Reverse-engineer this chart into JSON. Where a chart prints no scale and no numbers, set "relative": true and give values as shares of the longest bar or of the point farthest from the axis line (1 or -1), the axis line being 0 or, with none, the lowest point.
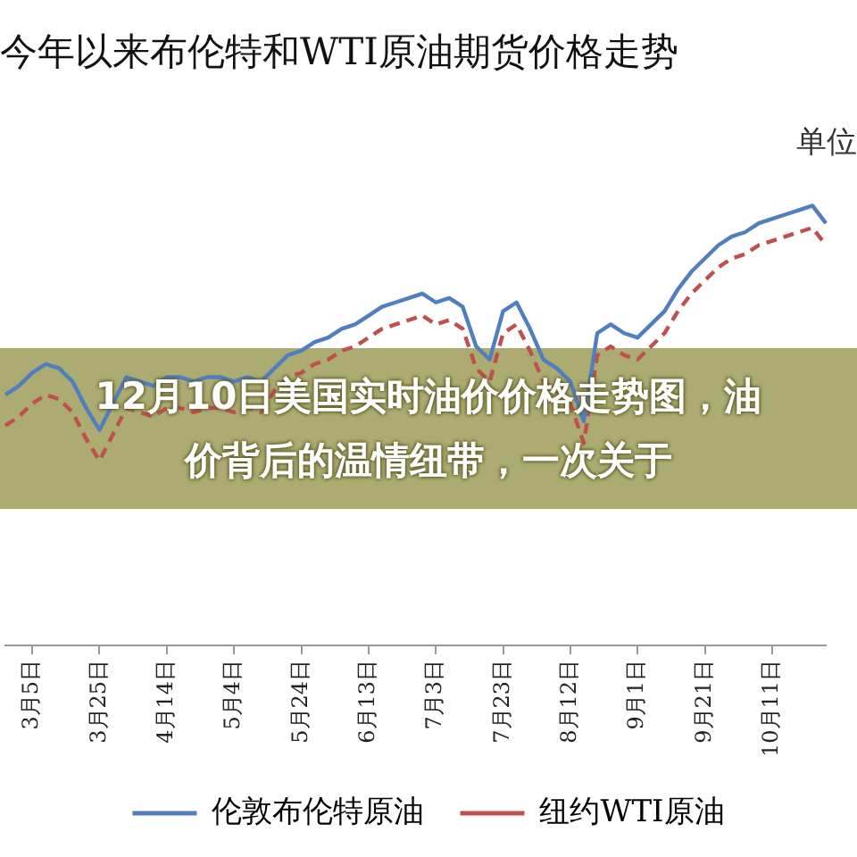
{
  "chart_data": {
    "type": "line",
    "title": "今年以来布伦特和WTI原油期货价格走势",
    "relative": true,
    "legend": "bottom",
    "marker": "none",
    "annotations": [
      "单位",
      "12月10日美国实时油价价格走势图，油价背后的温情纽带，一次关于"
    ],
    "categories": [
      null,
      null,
      "3月5日",
      null,
      null,
      null,
      null,
      "3月25日",
      null,
      null,
      null,
      null,
      "4月14日",
      null,
      null,
      null,
      null,
      "5月4日",
      null,
      null,
      null,
      null,
      "5月24日",
      null,
      null,
      null,
      null,
      "6月13日",
      null,
      null,
      null,
      null,
      "7月3日",
      null,
      null,
      null,
      null,
      "7月23日",
      null,
      null,
      null,
      null,
      "8月12日",
      null,
      null,
      null,
      null,
      "9月1日",
      null,
      null,
      null,
      null,
      "9月21日",
      null,
      null,
      null,
      null,
      "10月11日",
      null,
      null,
      null,
      null
    ],
    "series": [
      {
        "name": "伦敦布伦特原油",
        "color": "#4f7fbf",
        "line_style": "solid",
        "values": [
          0.57,
          0.59,
          0.62,
          0.64,
          0.63,
          0.6,
          0.54,
          0.49,
          0.55,
          0.61,
          0.6,
          0.59,
          0.61,
          0.61,
          0.6,
          0.61,
          0.61,
          0.6,
          0.61,
          0.6,
          0.63,
          0.66,
          0.67,
          0.69,
          0.7,
          0.72,
          0.73,
          0.75,
          0.77,
          0.78,
          0.79,
          0.8,
          0.78,
          0.79,
          0.77,
          0.68,
          0.65,
          0.76,
          0.78,
          0.72,
          0.65,
          0.63,
          0.6,
          0.51,
          0.71,
          0.73,
          0.71,
          0.7,
          0.73,
          0.76,
          0.81,
          0.85,
          0.88,
          0.91,
          0.93,
          0.94,
          0.96,
          0.97,
          0.98,
          0.99,
          1,
          0.96
        ]
      },
      {
        "name": "纽约WTI原油",
        "color": "#c0504d",
        "line_style": "dashed",
        "values": [
          0.5,
          0.52,
          0.55,
          0.57,
          0.56,
          0.53,
          0.47,
          0.42,
          0.48,
          0.54,
          0.53,
          0.52,
          0.54,
          0.54,
          0.53,
          0.54,
          0.54,
          0.53,
          0.54,
          0.53,
          0.58,
          0.61,
          0.62,
          0.64,
          0.65,
          0.67,
          0.68,
          0.7,
          0.72,
          0.73,
          0.74,
          0.75,
          0.73,
          0.74,
          0.72,
          0.63,
          0.6,
          0.71,
          0.73,
          0.67,
          0.6,
          0.58,
          0.55,
          0.46,
          0.66,
          0.68,
          0.66,
          0.65,
          0.68,
          0.71,
          0.76,
          0.8,
          0.83,
          0.86,
          0.88,
          0.89,
          0.91,
          0.92,
          0.93,
          0.94,
          0.95,
          0.91
        ]
      }
    ]
  }
}
